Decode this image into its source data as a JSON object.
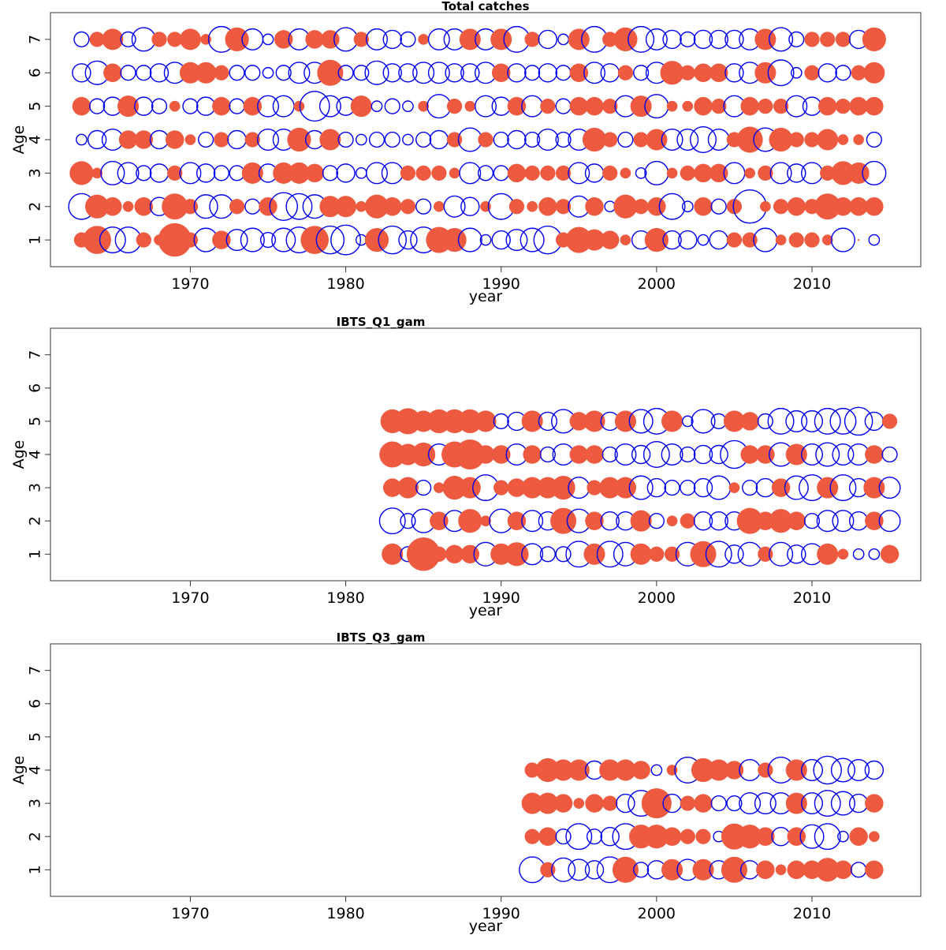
{
  "chart_data": [
    {
      "type": "scatter",
      "title": "Total catches",
      "xlabel": "year",
      "ylabel": "Age",
      "xlim": [
        1961,
        2017
      ],
      "ylim": [
        0.2,
        7.8
      ],
      "xticks": [
        1970,
        1980,
        1990,
        2000,
        2010
      ],
      "yticks": [
        1,
        2,
        3,
        4,
        5,
        6,
        7
      ],
      "years": [
        1963,
        1964,
        1965,
        1966,
        1967,
        1968,
        1969,
        1970,
        1971,
        1972,
        1973,
        1974,
        1975,
        1976,
        1977,
        1978,
        1979,
        1980,
        1981,
        1982,
        1983,
        1984,
        1985,
        1986,
        1987,
        1988,
        1989,
        1990,
        1991,
        1992,
        1993,
        1994,
        1995,
        1996,
        1997,
        1998,
        1999,
        2000,
        2001,
        2002,
        2003,
        2004,
        2005,
        2006,
        2007,
        2008,
        2009,
        2010,
        2011,
        2012,
        2013,
        2014
      ],
      "ages": [
        1,
        2,
        3,
        4,
        5,
        6,
        7
      ],
      "legend": "none",
      "grid": false,
      "residual_scale_note": "values are bubble residuals; positive = filled red, negative = open blue",
      "residuals": [
        [
          0.2,
          0.7,
          -0.6,
          -0.6,
          0.2,
          0.1,
          1.0,
          0.2,
          -0.5,
          0.3,
          -0.4,
          -0.5,
          -0.2,
          -0.5,
          -0.6,
          0.7,
          -0.7,
          -0.8,
          -0.1,
          0.5,
          -0.7,
          -0.3,
          -0.6,
          0.6,
          0.5,
          -0.5,
          -0.1,
          -0.3,
          -0.4,
          -0.5,
          -0.7,
          0.2,
          0.6,
          0.4,
          0.3,
          0.1,
          -0.3,
          0.5,
          -0.3,
          -0.3,
          -0.1,
          -0.3,
          0.2,
          0.2,
          -0.5,
          0.1,
          0.2,
          0.2,
          0.1,
          -0.5,
          0.0,
          -0.1
        ],
        [
          -0.6,
          0.5,
          0.3,
          0.1,
          0.3,
          -0.3,
          0.6,
          0.2,
          -0.5,
          -0.5,
          0.2,
          -0.2,
          0.3,
          -0.7,
          -0.6,
          -0.5,
          0.4,
          0.4,
          0.1,
          0.5,
          0.3,
          0.2,
          -0.2,
          0.1,
          -0.4,
          -0.3,
          0.1,
          -0.6,
          0.2,
          0.1,
          0.3,
          0.2,
          -0.4,
          0.3,
          -0.1,
          0.5,
          0.2,
          0.3,
          -0.6,
          -0.1,
          0.3,
          -0.2,
          0.2,
          -1.0,
          0.1,
          0.2,
          0.3,
          0.2,
          0.6,
          0.3,
          0.3,
          0.3
        ],
        [
          0.5,
          0.1,
          -0.5,
          -0.4,
          -0.2,
          -0.3,
          0.2,
          -0.4,
          -0.3,
          -0.2,
          -0.2,
          0.4,
          -0.3,
          0.4,
          0.4,
          0.3,
          -0.2,
          -0.3,
          -0.1,
          -0.4,
          -0.4,
          0.2,
          0.2,
          0.2,
          0.1,
          -0.4,
          -0.2,
          -0.2,
          0.3,
          0.2,
          0.2,
          0.2,
          -0.4,
          -0.3,
          0.2,
          0.1,
          -0.1,
          -0.5,
          0.1,
          0.2,
          0.3,
          0.3,
          -0.4,
          0.1,
          0.2,
          -0.4,
          -0.3,
          -0.4,
          0.2,
          0.5,
          0.4,
          -0.5
        ],
        [
          -0.1,
          -0.3,
          -0.4,
          0.3,
          0.3,
          -0.3,
          0.3,
          0.1,
          -0.2,
          0.2,
          -0.3,
          0.2,
          -0.4,
          -0.4,
          0.5,
          -0.3,
          0.4,
          -0.2,
          -0.1,
          -0.2,
          -0.2,
          -0.1,
          -0.2,
          -0.3,
          0.2,
          -0.5,
          0.2,
          -0.2,
          -0.3,
          -0.2,
          -0.4,
          -0.2,
          -0.4,
          0.5,
          0.2,
          -0.2,
          0.2,
          0.4,
          -0.4,
          -0.4,
          -0.6,
          -0.4,
          0.2,
          0.6,
          -0.5,
          0.5,
          0.2,
          0.2,
          0.4,
          0.1,
          0.1,
          -0.2
        ],
        [
          0.3,
          -0.2,
          -0.3,
          0.4,
          -0.3,
          -0.2,
          0.1,
          -0.2,
          -0.3,
          0.3,
          -0.2,
          0.3,
          -0.4,
          -0.4,
          0.1,
          -0.8,
          -0.4,
          -0.3,
          0.4,
          -0.1,
          -0.2,
          -0.1,
          0.1,
          -0.5,
          0.2,
          0.1,
          -0.4,
          -0.3,
          0.3,
          -0.4,
          0.2,
          -0.2,
          0.3,
          0.3,
          0.2,
          -0.4,
          0.4,
          -0.5,
          0.1,
          0.1,
          0.3,
          0.2,
          -0.4,
          0.3,
          0.2,
          0.2,
          -0.4,
          -0.3,
          0.3,
          0.2,
          0.3,
          0.3
        ],
        [
          -0.3,
          -0.5,
          0.3,
          -0.2,
          -0.2,
          -0.3,
          -0.4,
          0.4,
          0.4,
          0.2,
          -0.2,
          -0.2,
          -0.1,
          -0.2,
          -0.4,
          -0.4,
          0.6,
          -0.2,
          -0.2,
          -0.5,
          -0.3,
          -0.3,
          -0.4,
          -0.4,
          -0.3,
          -0.3,
          -0.4,
          0.3,
          -0.3,
          -0.2,
          -0.3,
          -0.2,
          0.3,
          -0.4,
          -0.3,
          0.2,
          -0.2,
          -0.4,
          0.5,
          0.2,
          0.3,
          0.3,
          -0.3,
          -0.4,
          0.4,
          -0.6,
          -0.1,
          0.2,
          -0.3,
          -0.2,
          0.2,
          0.4
        ],
        [
          -0.2,
          0.2,
          0.4,
          -0.2,
          -0.5,
          0.2,
          0.2,
          0.4,
          0.1,
          -0.6,
          0.5,
          -0.4,
          -0.1,
          0.3,
          -0.4,
          0.3,
          0.3,
          -0.5,
          0.2,
          -0.4,
          -0.3,
          -0.2,
          0.1,
          -0.4,
          -0.4,
          0.4,
          -0.4,
          0.4,
          -0.6,
          0.2,
          -0.3,
          -0.1,
          0.4,
          -0.6,
          0.2,
          0.5,
          -0.6,
          -0.4,
          -0.3,
          -0.2,
          -0.3,
          -0.3,
          -0.3,
          -0.4,
          0.4,
          -0.5,
          -0.2,
          0.2,
          0.2,
          0.2,
          -0.3,
          0.5
        ]
      ]
    },
    {
      "type": "scatter",
      "title": "IBTS_Q1_gam",
      "xlabel": "year",
      "ylabel": "Age",
      "xlim": [
        1961,
        2017
      ],
      "ylim": [
        0.2,
        7.8
      ],
      "xticks": [
        1970,
        1980,
        1990,
        2000,
        2010
      ],
      "yticks": [
        1,
        2,
        3,
        4,
        5,
        6,
        7
      ],
      "years": [
        1983,
        1984,
        1985,
        1986,
        1987,
        1988,
        1989,
        1990,
        1991,
        1992,
        1993,
        1994,
        1995,
        1996,
        1997,
        1998,
        1999,
        2000,
        2001,
        2002,
        2003,
        2004,
        2005,
        2006,
        2007,
        2008,
        2009,
        2010,
        2011,
        2012,
        2013,
        2014,
        2015
      ],
      "ages": [
        1,
        2,
        3,
        4,
        5
      ],
      "legend": "none",
      "grid": false,
      "residuals": [
        [
          0.4,
          -0.2,
          1.0,
          0.2,
          0.3,
          0.3,
          -0.5,
          0.4,
          0.5,
          -0.4,
          -0.2,
          -0.2,
          -0.6,
          0.4,
          -0.6,
          -0.5,
          0.4,
          0.2,
          0.2,
          -0.5,
          0.6,
          -0.6,
          -0.3,
          -0.5,
          0.2,
          -0.5,
          -0.3,
          -0.4,
          0.4,
          0.1,
          -0.1,
          -0.1,
          0.3
        ],
        [
          -0.6,
          -0.2,
          -0.5,
          0.3,
          -0.4,
          0.5,
          0.1,
          -0.5,
          0.3,
          -0.4,
          -0.3,
          0.6,
          -0.5,
          0.3,
          -0.3,
          -0.3,
          0.4,
          -0.2,
          0.1,
          0.2,
          -0.3,
          -0.3,
          -0.3,
          0.6,
          0.3,
          0.5,
          0.3,
          -0.2,
          -0.4,
          -0.4,
          -0.3,
          0.3,
          -0.4
        ],
        [
          0.3,
          0.4,
          -0.2,
          0.1,
          0.5,
          0.4,
          -0.6,
          0.2,
          0.3,
          0.4,
          0.4,
          0.5,
          -0.4,
          0.2,
          0.4,
          0.4,
          -0.5,
          -0.3,
          -0.2,
          -0.2,
          -0.3,
          -0.5,
          0.1,
          -0.2,
          -0.3,
          0.3,
          -0.5,
          -0.6,
          0.4,
          -0.6,
          -0.3,
          0.4,
          -0.4
        ],
        [
          0.6,
          0.4,
          0.5,
          -0.4,
          0.6,
          0.8,
          0.3,
          0.3,
          -0.4,
          0.3,
          -0.2,
          -0.4,
          0.3,
          0.3,
          -0.2,
          -0.4,
          -0.3,
          -0.6,
          -0.4,
          -0.2,
          -0.3,
          -0.3,
          -0.7,
          0.3,
          0.3,
          -0.5,
          0.4,
          -0.4,
          -0.5,
          -0.4,
          -0.4,
          0.3,
          -0.2
        ],
        [
          0.5,
          0.6,
          0.4,
          0.5,
          0.5,
          0.5,
          0.4,
          -0.2,
          -0.3,
          0.4,
          -0.3,
          -0.5,
          0.3,
          0.4,
          -0.3,
          0.4,
          -0.5,
          -0.6,
          0.4,
          -0.1,
          -0.5,
          -0.2,
          0.4,
          0.3,
          -0.2,
          -0.6,
          -0.4,
          -0.4,
          -0.6,
          -0.6,
          -0.7,
          -0.3,
          0.2
        ]
      ]
    },
    {
      "type": "scatter",
      "title": "IBTS_Q3_gam",
      "xlabel": "year",
      "ylabel": "Age",
      "xlim": [
        1961,
        2017
      ],
      "ylim": [
        0.2,
        7.8
      ],
      "xticks": [
        1970,
        1980,
        1990,
        2000,
        2010
      ],
      "yticks": [
        1,
        2,
        3,
        4,
        5,
        6,
        7
      ],
      "years": [
        1992,
        1993,
        1994,
        1995,
        1996,
        1997,
        1998,
        1999,
        2000,
        2001,
        2002,
        2003,
        2004,
        2005,
        2006,
        2007,
        2008,
        2009,
        2010,
        2011,
        2012,
        2013,
        2014
      ],
      "ages": [
        1,
        2,
        3,
        4
      ],
      "legend": "none",
      "grid": false,
      "residuals": [
        [
          -0.6,
          0.2,
          -0.5,
          -0.4,
          -0.3,
          -0.6,
          0.6,
          -0.2,
          -0.3,
          0.4,
          -0.4,
          0.4,
          -0.3,
          0.6,
          -0.3,
          0.3,
          0.1,
          0.3,
          0.3,
          0.5,
          0.3,
          -0.2,
          0.3
        ],
        [
          0.2,
          0.3,
          -0.2,
          -0.6,
          -0.2,
          -0.3,
          -0.6,
          0.5,
          0.5,
          0.3,
          0.2,
          0.2,
          -0.1,
          0.6,
          0.5,
          0.3,
          -0.3,
          0.3,
          -0.5,
          -0.6,
          -0.1,
          0.3,
          0.1
        ],
        [
          0.4,
          0.4,
          0.3,
          0.1,
          0.3,
          0.2,
          -0.3,
          -0.6,
          0.8,
          -0.3,
          0.2,
          0.3,
          -0.2,
          -0.2,
          -0.4,
          -0.4,
          -0.4,
          0.4,
          -0.4,
          -0.6,
          -0.5,
          -0.3,
          0.3
        ],
        [
          0.2,
          0.5,
          0.4,
          0.4,
          -0.3,
          0.4,
          0.4,
          0.3,
          -0.1,
          0.1,
          -0.6,
          0.5,
          0.4,
          0.3,
          -0.4,
          0.2,
          -0.6,
          0.4,
          -0.4,
          -0.7,
          -0.5,
          -0.4,
          -0.3
        ]
      ]
    }
  ],
  "colors": {
    "positive_fill": "#ee5a40",
    "negative_stroke": "#0000ee",
    "axis": "#333333",
    "background": "#ffffff"
  }
}
